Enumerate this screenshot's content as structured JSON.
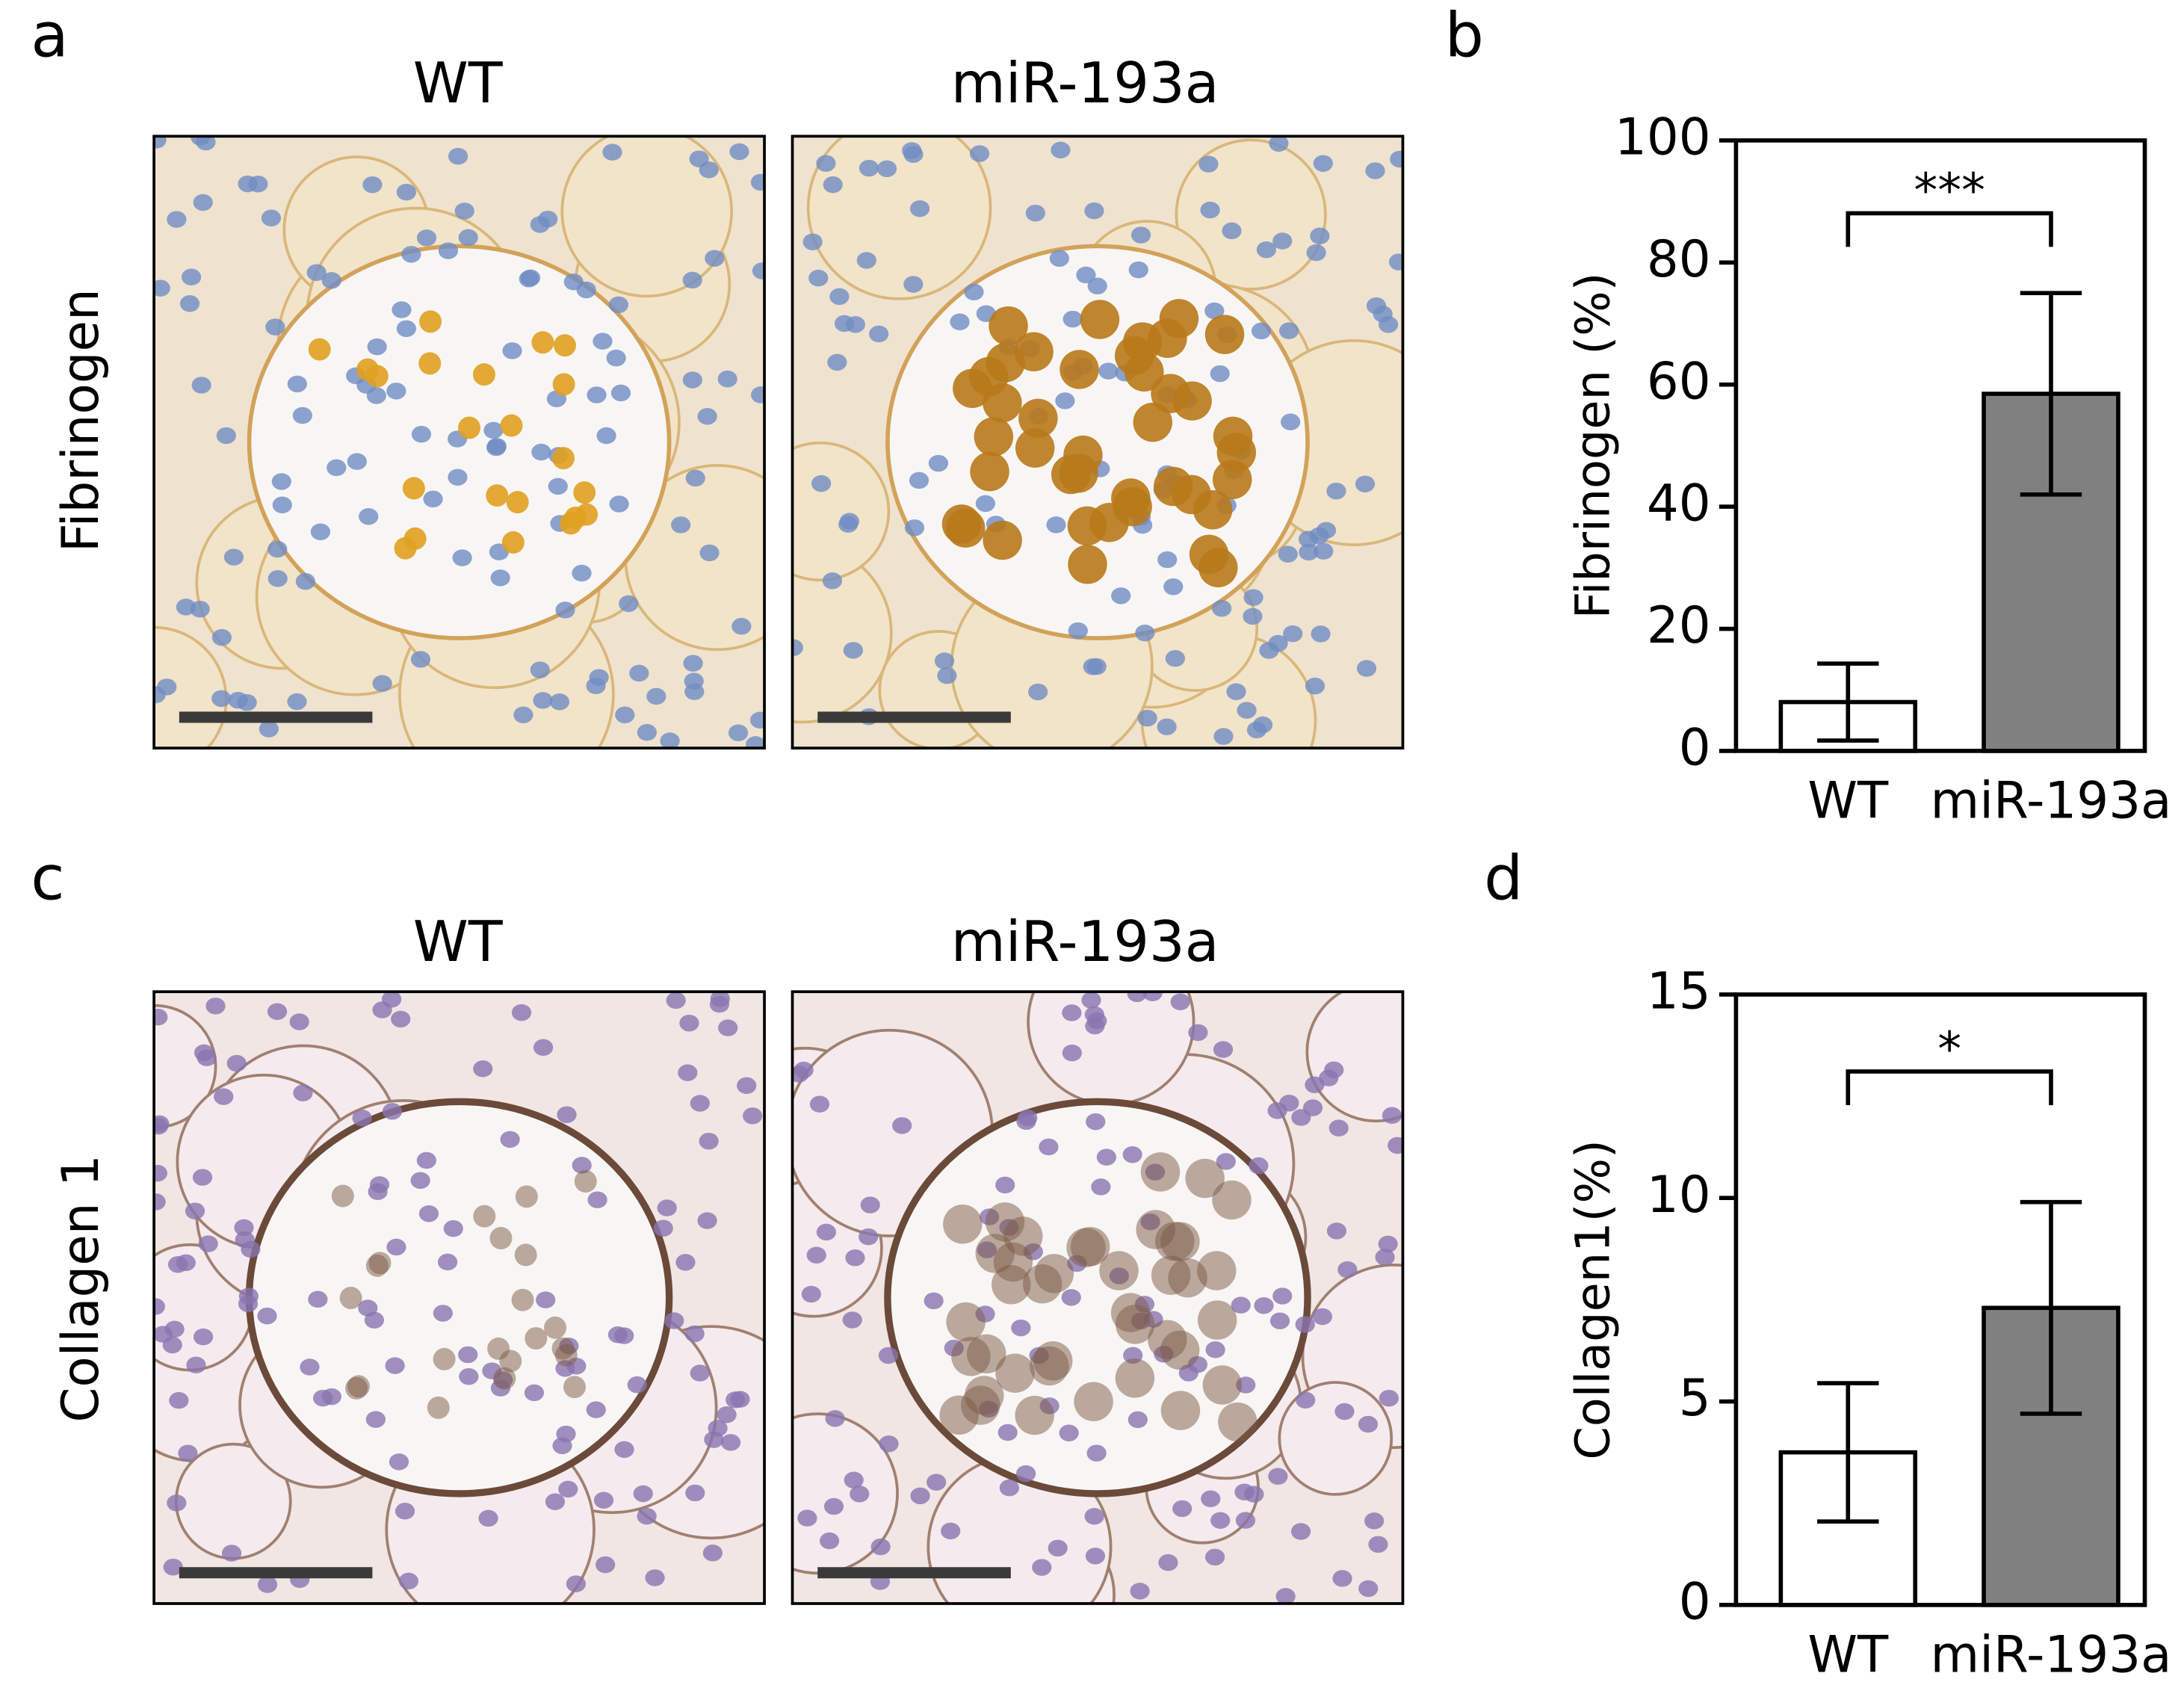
{
  "figure": {
    "panel_labels": [
      "a",
      "b",
      "c",
      "d"
    ],
    "rows": [
      {
        "label": "Fibrinogen",
        "columns": [
          "WT",
          "miR-193a"
        ]
      },
      {
        "label": "Collagen 1",
        "columns": [
          "WT",
          "miR-193a"
        ]
      }
    ]
  },
  "chart_data": [
    {
      "type": "bar",
      "ylabel": "Fibrinogen (%)",
      "categories": [
        "WT",
        "miR-193a"
      ],
      "values": [
        8,
        58.5
      ],
      "errors": [
        6.3,
        16.5
      ],
      "colors": [
        "#ffffff",
        "#808080"
      ],
      "ylim": [
        0,
        100
      ],
      "yticks": [
        0,
        20,
        40,
        60,
        80,
        100
      ],
      "significance": "***"
    },
    {
      "type": "bar",
      "ylabel": "Collagen1(%)",
      "categories": [
        "WT",
        "miR-193a"
      ],
      "values": [
        3.75,
        7.3
      ],
      "errors": [
        1.7,
        2.6
      ],
      "colors": [
        "#ffffff",
        "#808080"
      ],
      "ylim": [
        0,
        15
      ],
      "yticks": [
        0,
        5,
        10,
        15
      ],
      "significance": "*"
    }
  ]
}
